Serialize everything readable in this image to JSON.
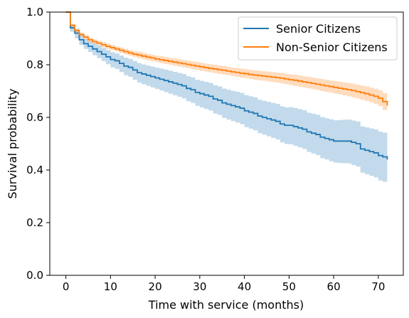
{
  "chart_data": {
    "type": "line",
    "xlabel": "Time with service (months)",
    "ylabel": "Survival probability",
    "xlim": [
      -3.6,
      75.6
    ],
    "ylim": [
      0.0,
      1.0
    ],
    "xticks": [
      0,
      10,
      20,
      30,
      40,
      50,
      60,
      70
    ],
    "yticks": [
      0.0,
      0.2,
      0.4,
      0.6,
      0.8,
      1.0
    ],
    "xtick_labels": [
      "0",
      "10",
      "20",
      "30",
      "40",
      "50",
      "60",
      "70"
    ],
    "ytick_labels": [
      "0.0",
      "0.2",
      "0.4",
      "0.6",
      "0.8",
      "1.0"
    ],
    "legend_position": "top-right",
    "grid": false,
    "step_style": "post",
    "series": [
      {
        "name": "Senior Citizens",
        "color": "#1f77b4",
        "x": [
          0,
          1,
          2,
          3,
          4,
          5,
          6,
          7,
          8,
          9,
          10,
          11,
          12,
          13,
          14,
          15,
          16,
          17,
          18,
          19,
          20,
          21,
          22,
          23,
          24,
          25,
          26,
          27,
          28,
          29,
          30,
          31,
          32,
          33,
          34,
          35,
          36,
          37,
          38,
          39,
          40,
          41,
          42,
          43,
          44,
          45,
          46,
          47,
          48,
          49,
          50,
          51,
          52,
          53,
          54,
          55,
          56,
          57,
          58,
          59,
          60,
          61,
          62,
          63,
          64,
          65,
          66,
          67,
          68,
          69,
          70,
          71,
          72
        ],
        "y": [
          1.0,
          0.94,
          0.92,
          0.895,
          0.88,
          0.87,
          0.86,
          0.85,
          0.84,
          0.83,
          0.82,
          0.815,
          0.805,
          0.795,
          0.79,
          0.78,
          0.77,
          0.765,
          0.76,
          0.755,
          0.75,
          0.745,
          0.74,
          0.735,
          0.73,
          0.725,
          0.72,
          0.71,
          0.705,
          0.695,
          0.69,
          0.685,
          0.68,
          0.67,
          0.665,
          0.655,
          0.65,
          0.645,
          0.64,
          0.635,
          0.625,
          0.62,
          0.615,
          0.605,
          0.6,
          0.595,
          0.59,
          0.585,
          0.575,
          0.57,
          0.57,
          0.565,
          0.56,
          0.555,
          0.545,
          0.54,
          0.535,
          0.525,
          0.52,
          0.515,
          0.51,
          0.51,
          0.51,
          0.51,
          0.505,
          0.5,
          0.48,
          0.475,
          0.47,
          0.465,
          0.455,
          0.45,
          0.44
        ],
        "ci_lower": [
          1.0,
          0.925,
          0.9,
          0.875,
          0.86,
          0.848,
          0.836,
          0.825,
          0.814,
          0.802,
          0.79,
          0.784,
          0.772,
          0.76,
          0.754,
          0.743,
          0.732,
          0.726,
          0.72,
          0.714,
          0.708,
          0.702,
          0.696,
          0.69,
          0.684,
          0.678,
          0.672,
          0.661,
          0.655,
          0.644,
          0.638,
          0.632,
          0.626,
          0.615,
          0.609,
          0.598,
          0.592,
          0.586,
          0.58,
          0.574,
          0.563,
          0.557,
          0.551,
          0.54,
          0.534,
          0.528,
          0.522,
          0.516,
          0.505,
          0.499,
          0.498,
          0.492,
          0.486,
          0.48,
          0.469,
          0.463,
          0.457,
          0.445,
          0.44,
          0.433,
          0.428,
          0.427,
          0.426,
          0.425,
          0.419,
          0.413,
          0.39,
          0.384,
          0.378,
          0.372,
          0.36,
          0.355,
          0.38
        ],
        "ci_upper": [
          1.0,
          0.953,
          0.936,
          0.913,
          0.899,
          0.89,
          0.882,
          0.873,
          0.864,
          0.856,
          0.848,
          0.843,
          0.835,
          0.827,
          0.822,
          0.814,
          0.806,
          0.801,
          0.797,
          0.793,
          0.789,
          0.785,
          0.781,
          0.777,
          0.773,
          0.769,
          0.765,
          0.756,
          0.752,
          0.743,
          0.739,
          0.735,
          0.731,
          0.722,
          0.718,
          0.709,
          0.705,
          0.701,
          0.697,
          0.693,
          0.684,
          0.68,
          0.676,
          0.667,
          0.663,
          0.659,
          0.655,
          0.651,
          0.642,
          0.638,
          0.639,
          0.635,
          0.631,
          0.627,
          0.618,
          0.614,
          0.61,
          0.601,
          0.597,
          0.593,
          0.589,
          0.59,
          0.591,
          0.592,
          0.588,
          0.584,
          0.566,
          0.562,
          0.558,
          0.554,
          0.546,
          0.542,
          0.5
        ]
      },
      {
        "name": "Non-Senior Citizens",
        "color": "#ff7f0e",
        "x": [
          0,
          1,
          2,
          3,
          4,
          5,
          6,
          7,
          8,
          9,
          10,
          11,
          12,
          13,
          14,
          15,
          16,
          17,
          18,
          19,
          20,
          21,
          22,
          23,
          24,
          25,
          26,
          27,
          28,
          29,
          30,
          31,
          32,
          33,
          34,
          35,
          36,
          37,
          38,
          39,
          40,
          41,
          42,
          43,
          44,
          45,
          46,
          47,
          48,
          49,
          50,
          51,
          52,
          53,
          54,
          55,
          56,
          57,
          58,
          59,
          60,
          61,
          62,
          63,
          64,
          65,
          66,
          67,
          68,
          69,
          70,
          71,
          72
        ],
        "y": [
          1.0,
          0.95,
          0.93,
          0.915,
          0.905,
          0.895,
          0.888,
          0.882,
          0.876,
          0.87,
          0.865,
          0.86,
          0.855,
          0.85,
          0.845,
          0.84,
          0.837,
          0.833,
          0.829,
          0.826,
          0.822,
          0.819,
          0.816,
          0.813,
          0.81,
          0.807,
          0.804,
          0.801,
          0.798,
          0.795,
          0.792,
          0.789,
          0.786,
          0.784,
          0.781,
          0.779,
          0.776,
          0.773,
          0.771,
          0.768,
          0.766,
          0.763,
          0.761,
          0.759,
          0.757,
          0.755,
          0.753,
          0.751,
          0.749,
          0.746,
          0.743,
          0.741,
          0.738,
          0.735,
          0.732,
          0.729,
          0.726,
          0.723,
          0.72,
          0.717,
          0.714,
          0.711,
          0.708,
          0.705,
          0.702,
          0.698,
          0.694,
          0.69,
          0.685,
          0.68,
          0.673,
          0.66,
          0.645
        ],
        "ci_lower": [
          1.0,
          0.944,
          0.923,
          0.907,
          0.896,
          0.886,
          0.879,
          0.873,
          0.866,
          0.86,
          0.855,
          0.85,
          0.844,
          0.839,
          0.834,
          0.829,
          0.825,
          0.821,
          0.817,
          0.814,
          0.81,
          0.806,
          0.803,
          0.8,
          0.796,
          0.793,
          0.79,
          0.787,
          0.783,
          0.78,
          0.777,
          0.774,
          0.771,
          0.768,
          0.765,
          0.763,
          0.76,
          0.757,
          0.754,
          0.751,
          0.749,
          0.746,
          0.743,
          0.741,
          0.739,
          0.736,
          0.734,
          0.732,
          0.729,
          0.726,
          0.723,
          0.72,
          0.717,
          0.714,
          0.71,
          0.707,
          0.704,
          0.7,
          0.697,
          0.694,
          0.69,
          0.687,
          0.683,
          0.68,
          0.676,
          0.672,
          0.667,
          0.662,
          0.657,
          0.651,
          0.643,
          0.628,
          0.625
        ],
        "ci_upper": [
          1.0,
          0.956,
          0.937,
          0.923,
          0.914,
          0.904,
          0.897,
          0.891,
          0.886,
          0.88,
          0.875,
          0.87,
          0.866,
          0.861,
          0.856,
          0.851,
          0.849,
          0.845,
          0.841,
          0.838,
          0.834,
          0.832,
          0.829,
          0.826,
          0.824,
          0.821,
          0.818,
          0.815,
          0.813,
          0.81,
          0.807,
          0.804,
          0.801,
          0.8,
          0.797,
          0.795,
          0.792,
          0.789,
          0.788,
          0.785,
          0.783,
          0.78,
          0.779,
          0.777,
          0.775,
          0.774,
          0.772,
          0.77,
          0.769,
          0.766,
          0.763,
          0.762,
          0.759,
          0.756,
          0.754,
          0.751,
          0.748,
          0.746,
          0.743,
          0.74,
          0.738,
          0.735,
          0.733,
          0.73,
          0.728,
          0.724,
          0.721,
          0.718,
          0.713,
          0.709,
          0.703,
          0.692,
          0.668
        ]
      }
    ]
  }
}
